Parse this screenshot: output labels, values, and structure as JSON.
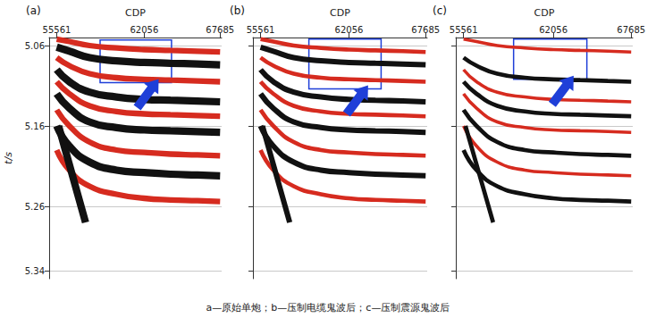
{
  "caption": "a—原始单炮；b—压制电缆鬼波后；c—压制震源鬼波后",
  "chart_data": [
    {
      "type": "line",
      "title": "(a)",
      "x_label": "CDP",
      "y_label": "t/s",
      "xlim": [
        55000,
        67800
      ],
      "xticks": [
        55561,
        62056,
        67685
      ],
      "ylim": [
        5.05,
        5.35
      ],
      "yticks": [
        5.06,
        5.16,
        5.26,
        5.34
      ],
      "grid": true,
      "highlight_box": {
        "x": [
          58780,
          64080
        ],
        "y": [
          5.053,
          5.106
        ],
        "color": "#1f3fd8"
      },
      "series": [
        {
          "color": "#d62b1f",
          "x": [
            55561,
            56500,
            58000,
            60000,
            62056,
            64000,
            66000,
            67685
          ],
          "values": [
            5.052,
            5.055,
            5.06,
            5.063,
            5.065,
            5.066,
            5.067,
            5.068
          ]
        },
        {
          "color": "#111111",
          "x": [
            55561,
            56500,
            58000,
            60000,
            62056,
            64000,
            66000,
            67685
          ],
          "values": [
            5.062,
            5.067,
            5.075,
            5.079,
            5.081,
            5.082,
            5.083,
            5.084
          ]
        },
        {
          "color": "#d62b1f",
          "x": [
            55561,
            56500,
            58000,
            60000,
            62056,
            64000,
            66000,
            67685
          ],
          "values": [
            5.075,
            5.085,
            5.095,
            5.1,
            5.102,
            5.103,
            5.104,
            5.105
          ]
        },
        {
          "color": "#111111",
          "x": [
            55561,
            56500,
            58000,
            60000,
            62056,
            64000,
            66000,
            67685
          ],
          "values": [
            5.09,
            5.105,
            5.118,
            5.124,
            5.127,
            5.128,
            5.129,
            5.13
          ]
        },
        {
          "color": "#d62b1f",
          "x": [
            55561,
            56500,
            58000,
            60000,
            62056,
            64000,
            66000,
            67685
          ],
          "values": [
            5.105,
            5.12,
            5.135,
            5.142,
            5.145,
            5.146,
            5.147,
            5.148
          ]
        },
        {
          "color": "#111111",
          "x": [
            55561,
            56500,
            58000,
            60000,
            62056,
            64000,
            66000,
            67685
          ],
          "values": [
            5.12,
            5.138,
            5.155,
            5.162,
            5.165,
            5.166,
            5.167,
            5.168
          ]
        },
        {
          "color": "#d62b1f",
          "x": [
            55561,
            56500,
            58000,
            60000,
            62056,
            64000,
            66000,
            67685
          ],
          "values": [
            5.14,
            5.16,
            5.18,
            5.19,
            5.193,
            5.195,
            5.196,
            5.197
          ]
        },
        {
          "color": "#111111",
          "x": [
            55561,
            56500,
            58000,
            60000,
            62056,
            64000,
            66000,
            67685
          ],
          "values": [
            5.16,
            5.185,
            5.205,
            5.215,
            5.218,
            5.22,
            5.221,
            5.222
          ]
        },
        {
          "color": "#d62b1f",
          "x": [
            55561,
            56500,
            58000,
            60000,
            62056,
            64000,
            66000,
            67685
          ],
          "values": [
            5.19,
            5.215,
            5.235,
            5.245,
            5.25,
            5.252,
            5.253,
            5.254
          ]
        },
        {
          "color": "#111111",
          "x": [
            55700,
            56200,
            56700,
            57200,
            57700
          ],
          "values": [
            5.16,
            5.19,
            5.22,
            5.25,
            5.28
          ]
        }
      ]
    },
    {
      "type": "line",
      "title": "(b)",
      "x_label": "CDP",
      "xlim": [
        55000,
        67800
      ],
      "xticks": [
        55561,
        62056,
        67685
      ],
      "ylim": [
        5.05,
        5.35
      ],
      "yticks": [
        5.06,
        5.16,
        5.26,
        5.34
      ],
      "grid": true,
      "tick_labels": "x",
      "highlight_box": {
        "x": [
          59110,
          64415
        ],
        "y": [
          5.052,
          5.114
        ],
        "color": "#1f3fd8"
      },
      "series": [
        {
          "color": "#d62b1f",
          "x": [
            55561,
            56500,
            58000,
            60000,
            62056,
            64000,
            66000,
            67685
          ],
          "values": [
            5.052,
            5.055,
            5.06,
            5.063,
            5.065,
            5.066,
            5.067,
            5.068
          ]
        },
        {
          "color": "#111111",
          "x": [
            55561,
            56500,
            58000,
            60000,
            62056,
            64000,
            66000,
            67685
          ],
          "values": [
            5.062,
            5.067,
            5.075,
            5.079,
            5.081,
            5.082,
            5.083,
            5.084
          ]
        },
        {
          "color": "#d62b1f",
          "x": [
            55561,
            56500,
            58000,
            60000,
            62056,
            64000,
            66000,
            67685
          ],
          "values": [
            5.075,
            5.085,
            5.095,
            5.1,
            5.102,
            5.103,
            5.104,
            5.105
          ]
        },
        {
          "color": "#111111",
          "x": [
            55561,
            56500,
            58000,
            60000,
            62056,
            64000,
            66000,
            67685
          ],
          "values": [
            5.09,
            5.105,
            5.118,
            5.124,
            5.127,
            5.128,
            5.129,
            5.13
          ]
        },
        {
          "color": "#d62b1f",
          "x": [
            55561,
            56500,
            58000,
            60000,
            62056,
            64000,
            66000,
            67685
          ],
          "values": [
            5.105,
            5.12,
            5.135,
            5.142,
            5.145,
            5.146,
            5.147,
            5.148
          ]
        },
        {
          "color": "#111111",
          "x": [
            55561,
            56500,
            58000,
            60000,
            62056,
            64000,
            66000,
            67685
          ],
          "values": [
            5.12,
            5.138,
            5.155,
            5.162,
            5.165,
            5.166,
            5.167,
            5.168
          ]
        },
        {
          "color": "#d62b1f",
          "x": [
            55561,
            56500,
            58000,
            60000,
            62056,
            64000,
            66000,
            67685
          ],
          "values": [
            5.14,
            5.16,
            5.18,
            5.19,
            5.193,
            5.195,
            5.196,
            5.197
          ]
        },
        {
          "color": "#111111",
          "x": [
            55561,
            56500,
            58000,
            60000,
            62056,
            64000,
            66000,
            67685
          ],
          "values": [
            5.16,
            5.185,
            5.205,
            5.215,
            5.218,
            5.22,
            5.221,
            5.222
          ]
        },
        {
          "color": "#d62b1f",
          "x": [
            55561,
            56500,
            58000,
            60000,
            62056,
            64000,
            66000,
            67685
          ],
          "values": [
            5.19,
            5.215,
            5.235,
            5.245,
            5.25,
            5.252,
            5.253,
            5.254
          ]
        },
        {
          "color": "#111111",
          "x": [
            55700,
            56200,
            56700,
            57200,
            57700
          ],
          "values": [
            5.16,
            5.19,
            5.22,
            5.25,
            5.28
          ]
        }
      ]
    },
    {
      "type": "line",
      "title": "(c)",
      "x_label": "CDP",
      "xlim": [
        55000,
        67800
      ],
      "xticks": [
        55561,
        62056,
        67685
      ],
      "ylim": [
        5.05,
        5.35
      ],
      "yticks": [
        5.06,
        5.16,
        5.26,
        5.34
      ],
      "grid": true,
      "tick_labels": "x",
      "highlight_box": {
        "x": [
          59180,
          64480
        ],
        "y": [
          5.052,
          5.102
        ],
        "color": "#1f3fd8"
      },
      "series": [
        {
          "color": "#d62b1f",
          "x": [
            55561,
            56500,
            58000,
            60000,
            62056,
            64000,
            66000,
            67685
          ],
          "values": [
            5.052,
            5.055,
            5.06,
            5.063,
            5.065,
            5.066,
            5.067,
            5.068
          ]
        },
        {
          "color": "#111111",
          "x": [
            55561,
            56500,
            58000,
            60000,
            62056,
            64000,
            66000,
            67685
          ],
          "values": [
            5.075,
            5.085,
            5.095,
            5.1,
            5.102,
            5.103,
            5.104,
            5.105
          ]
        },
        {
          "color": "#d62b1f",
          "x": [
            55561,
            56500,
            58000,
            60000,
            62056,
            64000,
            66000,
            67685
          ],
          "values": [
            5.09,
            5.105,
            5.118,
            5.124,
            5.127,
            5.128,
            5.129,
            5.13
          ]
        },
        {
          "color": "#111111",
          "x": [
            55561,
            56500,
            58000,
            60000,
            62056,
            64000,
            66000,
            67685
          ],
          "values": [
            5.105,
            5.12,
            5.135,
            5.142,
            5.145,
            5.146,
            5.147,
            5.148
          ]
        },
        {
          "color": "#d62b1f",
          "x": [
            55561,
            56500,
            58000,
            60000,
            62056,
            64000,
            66000,
            67685
          ],
          "values": [
            5.12,
            5.138,
            5.155,
            5.162,
            5.165,
            5.166,
            5.167,
            5.168
          ]
        },
        {
          "color": "#111111",
          "x": [
            55561,
            56500,
            58000,
            60000,
            62056,
            64000,
            66000,
            67685
          ],
          "values": [
            5.14,
            5.16,
            5.18,
            5.19,
            5.193,
            5.195,
            5.196,
            5.197
          ]
        },
        {
          "color": "#d62b1f",
          "x": [
            55561,
            56500,
            58000,
            60000,
            62056,
            64000,
            66000,
            67685
          ],
          "values": [
            5.16,
            5.185,
            5.205,
            5.215,
            5.218,
            5.22,
            5.221,
            5.222
          ]
        },
        {
          "color": "#111111",
          "x": [
            55561,
            56500,
            58000,
            60000,
            62056,
            64000,
            66000,
            67685
          ],
          "values": [
            5.19,
            5.215,
            5.235,
            5.245,
            5.25,
            5.252,
            5.253,
            5.254
          ]
        },
        {
          "color": "#111111",
          "x": [
            55700,
            56200,
            56700,
            57200,
            57700
          ],
          "values": [
            5.16,
            5.19,
            5.22,
            5.25,
            5.28
          ]
        }
      ]
    }
  ]
}
